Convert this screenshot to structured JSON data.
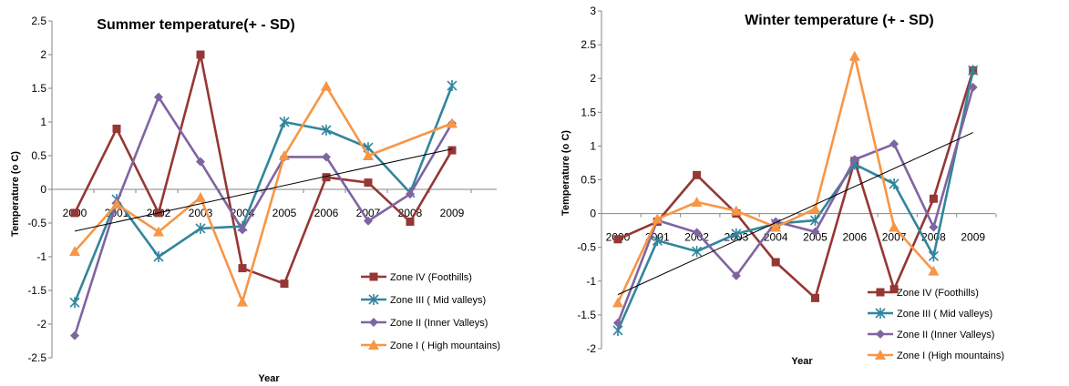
{
  "chart_data": [
    {
      "type": "line",
      "title": "Summer temperature(+ - SD)",
      "xlabel": "Year",
      "ylabel": "Temperature (o C)",
      "categories": [
        "2000",
        "2001",
        "2002",
        "2003",
        "2004",
        "2005",
        "2006",
        "2007",
        "2008",
        "2009"
      ],
      "ylim": [
        -2.5,
        2.5
      ],
      "yticks": [
        "2.5",
        "2",
        "1.5",
        "1",
        "0.5",
        "0",
        "-0.5",
        "-1",
        "-1.5",
        "-2",
        "-2.5"
      ],
      "legend_position": "bottom-right",
      "series": [
        {
          "name": "Zone IV (Foothills)",
          "color": "#953735",
          "marker": "square",
          "values": [
            -0.35,
            0.9,
            -0.35,
            2.0,
            -1.17,
            -1.4,
            0.18,
            0.1,
            -0.48,
            0.58
          ]
        },
        {
          "name": "Zone III ( Mid valleys)",
          "color": "#31859C",
          "marker": "star",
          "values": [
            -1.68,
            -0.15,
            -1.0,
            -0.58,
            -0.55,
            1.0,
            0.88,
            0.62,
            -0.05,
            1.54
          ]
        },
        {
          "name": "Zone II (Inner Valleys)",
          "color": "#8064A2",
          "marker": "diamond",
          "values": [
            -2.17,
            -0.2,
            1.37,
            0.41,
            -0.6,
            0.48,
            0.48,
            -0.47,
            -0.07,
            0.98
          ]
        },
        {
          "name": "Zone I ( High mountains)",
          "color": "#F79646",
          "marker": "triangle",
          "values": [
            -0.92,
            -0.22,
            -0.63,
            -0.12,
            -1.67,
            0.5,
            1.53,
            0.5,
            null,
            0.98
          ]
        }
      ],
      "trendline": {
        "color": "#000000",
        "values": [
          -0.62,
          0.6
        ]
      }
    },
    {
      "type": "line",
      "title": "Winter temperature (+ -  SD)",
      "xlabel": "Year",
      "ylabel": "Temperature (o C)",
      "categories": [
        "2000",
        "2001",
        "2002",
        "2003",
        "2004",
        "2005",
        "2006",
        "2007",
        "2008",
        "2009"
      ],
      "ylim": [
        -2,
        3
      ],
      "yticks": [
        "3",
        "2.5",
        "2",
        "1.5",
        "1",
        "0.5",
        "0",
        "-0.5",
        "-1",
        "-1.5",
        "-2"
      ],
      "legend_position": "bottom-right",
      "series": [
        {
          "name": "Zone IV (Foothills)",
          "color": "#953735",
          "marker": "square",
          "values": [
            -0.38,
            -0.12,
            0.57,
            0.0,
            -0.72,
            -1.25,
            0.78,
            -1.12,
            0.22,
            2.12
          ]
        },
        {
          "name": "Zone III ( Mid valleys)",
          "color": "#31859C",
          "marker": "star",
          "values": [
            -1.73,
            -0.4,
            -0.56,
            -0.3,
            -0.15,
            -0.1,
            0.73,
            0.44,
            -0.63,
            2.12
          ]
        },
        {
          "name": "Zone II (Inner Valleys)",
          "color": "#8064A2",
          "marker": "diamond",
          "values": [
            -1.62,
            -0.1,
            -0.28,
            -0.92,
            -0.12,
            -0.27,
            0.8,
            1.03,
            -0.2,
            1.87
          ]
        },
        {
          "name": "Zone I (High mountains)",
          "color": "#F79646",
          "marker": "triangle",
          "values": [
            -1.32,
            -0.08,
            0.17,
            0.04,
            -0.2,
            0.07,
            2.33,
            -0.2,
            -0.85,
            null
          ]
        }
      ],
      "trendline": {
        "color": "#000000",
        "values": [
          -1.2,
          1.2
        ]
      }
    }
  ]
}
